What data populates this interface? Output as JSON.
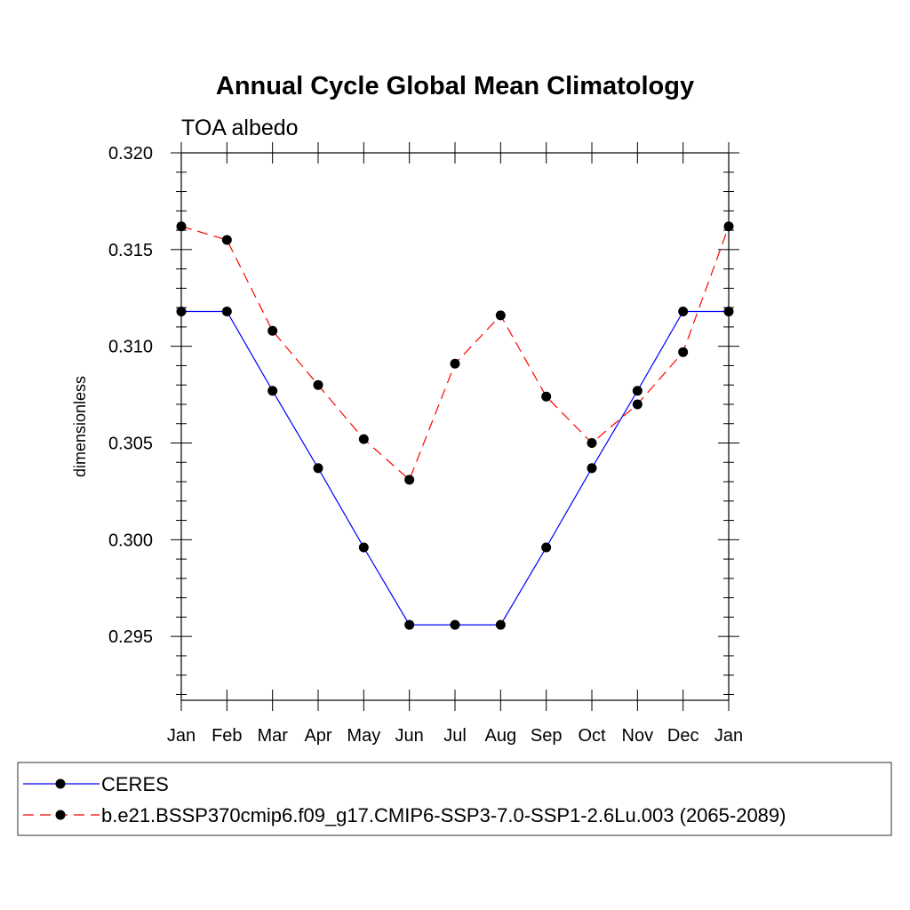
{
  "chart_data": {
    "type": "line",
    "title": "Annual Cycle Global Mean Climatology",
    "subtitle": "TOA albedo",
    "xlabel": "",
    "ylabel": "dimensionless",
    "categories": [
      "Jan",
      "Feb",
      "Mar",
      "Apr",
      "May",
      "Jun",
      "Jul",
      "Aug",
      "Sep",
      "Oct",
      "Nov",
      "Dec",
      "Jan"
    ],
    "ylim": [
      0.2917,
      0.32
    ],
    "yticks": [
      "0.295",
      "0.300",
      "0.305",
      "0.310",
      "0.315",
      "0.320"
    ],
    "ytick_values": [
      0.295,
      0.3,
      0.305,
      0.31,
      0.315,
      0.32
    ],
    "grid": false,
    "legend_position": "bottom",
    "series": [
      {
        "name": "CERES",
        "color": "#0000ff",
        "dash": "solid",
        "values": [
          0.3118,
          0.3118,
          0.3077,
          0.3037,
          0.2996,
          0.2956,
          0.2956,
          0.2956,
          0.2996,
          0.3037,
          0.3077,
          0.3118,
          0.3118
        ]
      },
      {
        "name": "b.e21.BSSP370cmip6.f09_g17.CMIP6-SSP3-7.0-SSP1-2.6Lu.003 (2065-2089)",
        "color": "#ff0000",
        "dash": "dashed",
        "values": [
          0.3162,
          0.3155,
          0.3108,
          0.308,
          0.3052,
          0.3031,
          0.3091,
          0.3116,
          0.3074,
          0.305,
          0.307,
          0.3097,
          0.3162
        ]
      }
    ]
  }
}
